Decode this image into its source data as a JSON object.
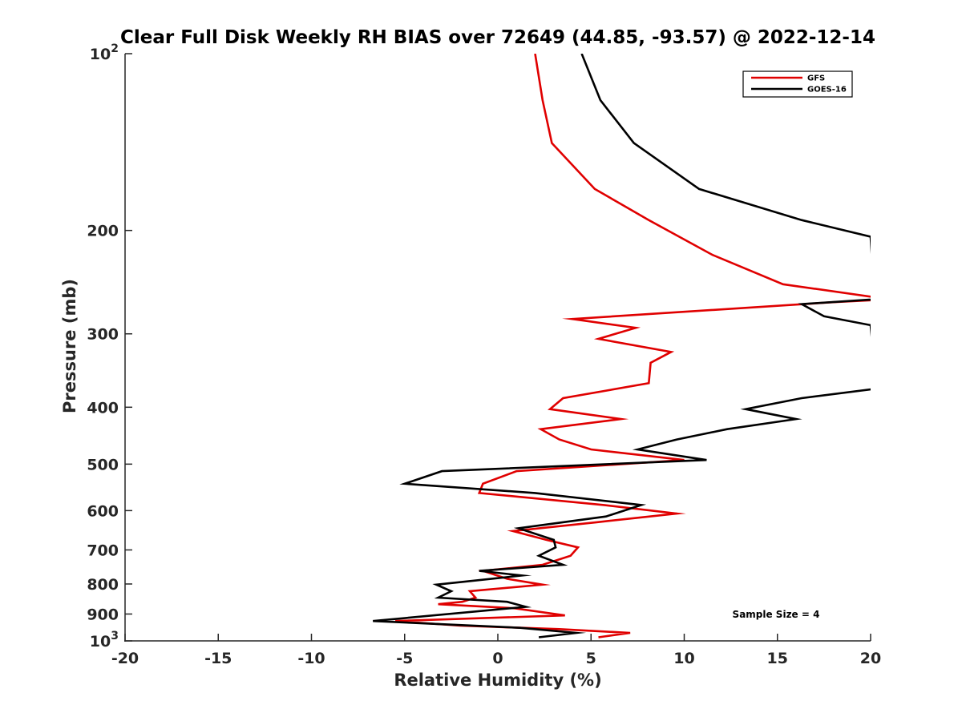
{
  "chart_data": {
    "type": "line",
    "title": "Clear Full Disk Weekly RH BIAS over 72649 (44.85, -93.57) @ 2022-12-14",
    "xlabel": "Relative Humidity (%)",
    "ylabel": "Pressure (mb)",
    "xlim": [
      -20,
      20
    ],
    "ylim": [
      100,
      1000
    ],
    "yscale": "log",
    "y_reversed": true,
    "grid": false,
    "legend_position": "top-right",
    "x_ticks": [
      "-20",
      "-15",
      "-10",
      "-5",
      "0",
      "5",
      "10",
      "15",
      "20"
    ],
    "y_ticks": [
      {
        "value": 100,
        "base": "10",
        "exp": "2"
      },
      {
        "value": 200,
        "label": "200"
      },
      {
        "value": 300,
        "label": "300"
      },
      {
        "value": 400,
        "label": "400"
      },
      {
        "value": 500,
        "label": "500"
      },
      {
        "value": 600,
        "label": "600"
      },
      {
        "value": 700,
        "label": "700"
      },
      {
        "value": 800,
        "label": "800"
      },
      {
        "value": 900,
        "label": "900"
      },
      {
        "value": 1000,
        "base": "10",
        "exp": "3"
      }
    ],
    "annotation": "Sample Size = 4",
    "series": [
      {
        "name": "GFS",
        "color": "#e00000",
        "points": [
          [
            2.0,
            100
          ],
          [
            2.4,
            120
          ],
          [
            2.9,
            142
          ],
          [
            5.2,
            170
          ],
          [
            8.1,
            192
          ],
          [
            11.5,
            220
          ],
          [
            15.3,
            247
          ],
          [
            21.0,
            262
          ],
          [
            18.0,
            265
          ],
          [
            4.0,
            283
          ],
          [
            7.4,
            293
          ],
          [
            5.4,
            306
          ],
          [
            9.3,
            322
          ],
          [
            8.2,
            336
          ],
          [
            8.1,
            364
          ],
          [
            3.5,
            386
          ],
          [
            2.8,
            403
          ],
          [
            6.6,
            419
          ],
          [
            2.3,
            436
          ],
          [
            3.3,
            454
          ],
          [
            5.0,
            472
          ],
          [
            10.0,
            492
          ],
          [
            1.0,
            514
          ],
          [
            -0.8,
            540
          ],
          [
            -1.0,
            560
          ],
          [
            5.7,
            587
          ],
          [
            9.6,
            607
          ],
          [
            5.3,
            628
          ],
          [
            0.8,
            650
          ],
          [
            2.6,
            673
          ],
          [
            4.3,
            693
          ],
          [
            3.9,
            716
          ],
          [
            2.4,
            742
          ],
          [
            -0.8,
            760
          ],
          [
            0.5,
            784
          ],
          [
            2.4,
            802
          ],
          [
            -1.5,
            823
          ],
          [
            -1.2,
            844
          ],
          [
            -1.9,
            858
          ],
          [
            -3.2,
            866
          ],
          [
            0.9,
            880
          ],
          [
            3.6,
            905
          ],
          [
            -5.5,
            925
          ],
          [
            -2.0,
            942
          ],
          [
            3.3,
            955
          ],
          [
            7.1,
            969
          ],
          [
            5.4,
            986
          ]
        ]
      },
      {
        "name": "GOES-16",
        "color": "#000000",
        "points": [
          [
            4.5,
            100
          ],
          [
            5.5,
            120
          ],
          [
            7.3,
            142
          ],
          [
            10.8,
            170
          ],
          [
            16.3,
            192
          ],
          [
            20.0,
            205
          ],
          [
            20.2,
            262
          ],
          [
            16.3,
            267
          ],
          [
            17.5,
            280
          ],
          [
            20.0,
            290
          ],
          [
            20.3,
            372
          ],
          [
            16.3,
            386
          ],
          [
            13.3,
            403
          ],
          [
            16.0,
            419
          ],
          [
            12.3,
            436
          ],
          [
            9.6,
            454
          ],
          [
            7.5,
            472
          ],
          [
            11.2,
            492
          ],
          [
            -3.0,
            514
          ],
          [
            -5.0,
            540
          ],
          [
            2.0,
            560
          ],
          [
            7.7,
            587
          ],
          [
            5.8,
            614
          ],
          [
            1.1,
            643
          ],
          [
            3.0,
            673
          ],
          [
            3.1,
            693
          ],
          [
            2.2,
            716
          ],
          [
            3.5,
            742
          ],
          [
            -1.0,
            760
          ],
          [
            1.3,
            774
          ],
          [
            -3.3,
            802
          ],
          [
            -2.5,
            823
          ],
          [
            -3.2,
            844
          ],
          [
            0.5,
            858
          ],
          [
            1.5,
            875
          ],
          [
            -6.7,
            925
          ],
          [
            1.2,
            950
          ],
          [
            4.2,
            969
          ],
          [
            2.2,
            986
          ]
        ]
      }
    ]
  }
}
